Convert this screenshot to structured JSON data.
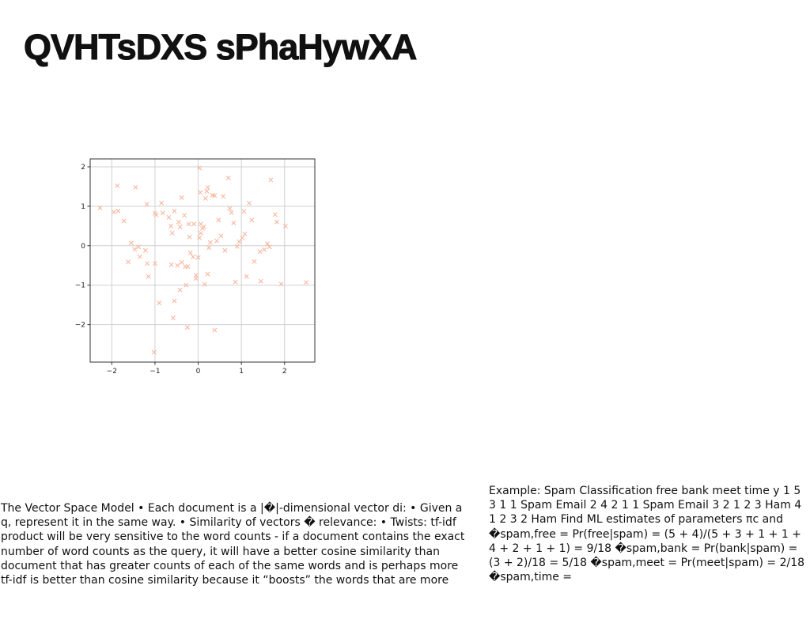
{
  "slide": {
    "title": "QVHTsDXS sPhaHywXA",
    "body_left": "The Vector Space Model • Each document is a |�|-dimensional vector di: • Given a q, represent it in the same way. • Similarity of vectors � relevance: • Twists:  tf-idf product will be very sensitive to the word counts - if a document contains the exact number of word counts as the query, it will have a better cosine similarity than document that has greater counts of each of the same words and is perhaps more tf-idf is better than cosine similarity because it “boosts” the words that are more",
    "body_right": "Example: Spam Classification free bank meet time y 1 5 3 1 1 Spam Email 2 4 2 1 1 Spam Email 3 2 1 2 3 Ham 4 1 2 3 2 Ham Find ML estimates of parameters πc and �spam,free = Pr(free|spam) = (5 + 4)/(5 + 3 + 1 + 1 + 4 + 2 + 1 + 1) = 9/18 �spam,bank = Pr(bank|spam) = (3 + 2)/18 = 5/18 �spam,meet = Pr(meet|spam) = 2/18 �spam,time ="
  },
  "chart_data": {
    "type": "scatter",
    "marker": "x",
    "marker_color": "#f9b7a1",
    "grid": true,
    "xlim": [
      -2.5,
      2.7
    ],
    "ylim": [
      -2.95,
      2.2
    ],
    "xticks": [
      -2,
      -1,
      0,
      1,
      2
    ],
    "yticks": [
      -2,
      -1,
      0,
      1,
      2
    ],
    "xtick_labels": [
      "−2",
      "−1",
      "0",
      "1",
      "2"
    ],
    "ytick_labels": [
      "−2",
      "−1",
      "0",
      "1",
      "2"
    ],
    "points": [
      [
        -2.27,
        0.96
      ],
      [
        -1.87,
        1.52
      ],
      [
        -1.95,
        0.85
      ],
      [
        -1.85,
        0.88
      ],
      [
        -1.72,
        0.63
      ],
      [
        -1.55,
        0.07
      ],
      [
        -1.47,
        -0.09
      ],
      [
        -1.38,
        -0.03
      ],
      [
        -1.62,
        -0.41
      ],
      [
        -1.45,
        1.48
      ],
      [
        -1.35,
        -0.28
      ],
      [
        -1.22,
        -0.12
      ],
      [
        -1.18,
        -0.45
      ],
      [
        -1.15,
        -0.78
      ],
      [
        -1.19,
        1.05
      ],
      [
        -1.0,
        -0.45
      ],
      [
        -1.0,
        0.82
      ],
      [
        -0.97,
        0.78
      ],
      [
        -0.85,
        1.08
      ],
      [
        -0.82,
        0.83
      ],
      [
        -0.68,
        0.72
      ],
      [
        -0.63,
        0.5
      ],
      [
        -0.6,
        0.32
      ],
      [
        -0.55,
        0.88
      ],
      [
        -0.45,
        0.6
      ],
      [
        -0.48,
        -0.5
      ],
      [
        -0.42,
        0.48
      ],
      [
        -0.38,
        1.22
      ],
      [
        -0.32,
        0.77
      ],
      [
        -0.38,
        -0.42
      ],
      [
        -0.3,
        -0.53
      ],
      [
        -0.24,
        -0.53
      ],
      [
        -0.22,
        0.55
      ],
      [
        -0.2,
        0.22
      ],
      [
        -0.18,
        -0.18
      ],
      [
        -0.12,
        -0.28
      ],
      [
        -0.1,
        0.55
      ],
      [
        -0.05,
        -0.75
      ],
      [
        -0.05,
        -0.83
      ],
      [
        0.0,
        -0.3
      ],
      [
        0.03,
        0.2
      ],
      [
        0.05,
        1.35
      ],
      [
        0.06,
        0.32
      ],
      [
        0.06,
        0.55
      ],
      [
        0.1,
        0.44
      ],
      [
        0.13,
        0.48
      ],
      [
        0.17,
        1.2
      ],
      [
        0.2,
        1.38
      ],
      [
        0.22,
        1.48
      ],
      [
        0.25,
        -0.05
      ],
      [
        0.28,
        0.08
      ],
      [
        0.33,
        1.28
      ],
      [
        0.38,
        1.27
      ],
      [
        0.43,
        0.12
      ],
      [
        0.47,
        0.65
      ],
      [
        0.53,
        0.25
      ],
      [
        0.58,
        1.25
      ],
      [
        0.62,
        -0.12
      ],
      [
        0.7,
        1.72
      ],
      [
        0.73,
        0.94
      ],
      [
        0.77,
        0.84
      ],
      [
        0.82,
        0.58
      ],
      [
        0.86,
        -0.92
      ],
      [
        0.9,
        -0.02
      ],
      [
        0.95,
        0.1
      ],
      [
        1.02,
        0.2
      ],
      [
        1.06,
        0.87
      ],
      [
        1.08,
        0.3
      ],
      [
        1.12,
        -0.78
      ],
      [
        1.18,
        1.08
      ],
      [
        1.24,
        0.65
      ],
      [
        1.3,
        -0.4
      ],
      [
        1.45,
        -0.9
      ],
      [
        1.43,
        -0.15
      ],
      [
        1.53,
        -0.1
      ],
      [
        1.6,
        0.05
      ],
      [
        1.65,
        -0.03
      ],
      [
        1.68,
        1.67
      ],
      [
        1.78,
        0.79
      ],
      [
        1.82,
        0.6
      ],
      [
        1.92,
        -0.97
      ],
      [
        2.02,
        0.5
      ],
      [
        2.5,
        -0.93
      ],
      [
        -0.9,
        -1.45
      ],
      [
        -0.58,
        -1.83
      ],
      [
        -0.55,
        -1.4
      ],
      [
        -0.25,
        -2.07
      ],
      [
        0.38,
        -2.14
      ],
      [
        -1.02,
        -2.7
      ],
      [
        0.03,
        1.97
      ],
      [
        0.22,
        -0.72
      ],
      [
        0.15,
        -0.98
      ],
      [
        -0.62,
        -0.48
      ],
      [
        -0.28,
        -1.0
      ],
      [
        -0.42,
        -1.12
      ]
    ]
  }
}
